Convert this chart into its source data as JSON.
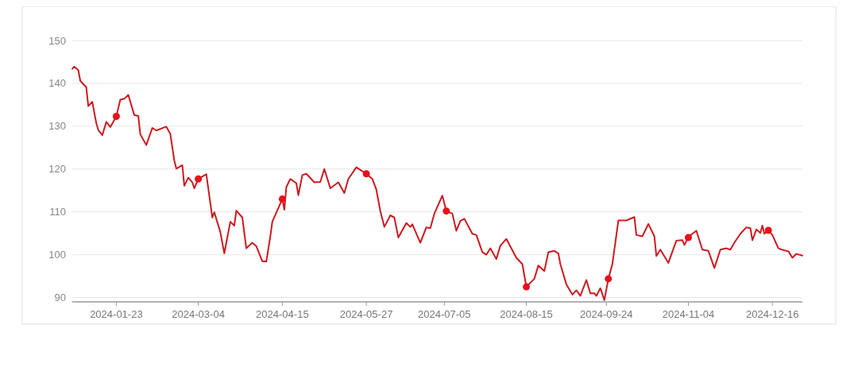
{
  "chart_data": {
    "type": "line",
    "xlim": [
      "2024-01-01",
      "2024-12-31"
    ],
    "ylim": [
      89,
      150
    ],
    "yticks": [
      90,
      100,
      110,
      120,
      130,
      140,
      150
    ],
    "xticks": [
      "2024-01-23",
      "2024-03-04",
      "2024-04-15",
      "2024-05-27",
      "2024-07-05",
      "2024-08-15",
      "2024-09-24",
      "2024-11-04",
      "2024-12-16"
    ],
    "grid": "y",
    "series": [
      {
        "color": "#cc1a1f",
        "marker": "none",
        "x": [
          "2024-01-01",
          "2024-01-02",
          "2024-01-04",
          "2024-01-05",
          "2024-01-08",
          "2024-01-09",
          "2024-01-11",
          "2024-01-13",
          "2024-01-14",
          "2024-01-16",
          "2024-01-18",
          "2024-01-20",
          "2024-01-23",
          "2024-01-25",
          "2024-01-27",
          "2024-01-29",
          "2024-02-01",
          "2024-02-03",
          "2024-02-04",
          "2024-02-07",
          "2024-02-10",
          "2024-02-12",
          "2024-02-17",
          "2024-02-19",
          "2024-02-21",
          "2024-02-22",
          "2024-02-25",
          "2024-02-26",
          "2024-02-28",
          "2024-03-01",
          "2024-03-02",
          "2024-03-04",
          "2024-03-08",
          "2024-03-11",
          "2024-03-12",
          "2024-03-15",
          "2024-03-17",
          "2024-03-20",
          "2024-03-22",
          "2024-03-23",
          "2024-03-26",
          "2024-03-28",
          "2024-03-31",
          "2024-04-02",
          "2024-04-05",
          "2024-04-07",
          "2024-04-09",
          "2024-04-10",
          "2024-04-15",
          "2024-04-16",
          "2024-04-17",
          "2024-04-19",
          "2024-04-22",
          "2024-04-23",
          "2024-04-25",
          "2024-04-27",
          "2024-05-01",
          "2024-05-04",
          "2024-05-06",
          "2024-05-09",
          "2024-05-13",
          "2024-05-16",
          "2024-05-18",
          "2024-05-22",
          "2024-05-24",
          "2024-05-27",
          "2024-05-30",
          "2024-06-01",
          "2024-06-03",
          "2024-06-05",
          "2024-06-08",
          "2024-06-10",
          "2024-06-12",
          "2024-06-16",
          "2024-06-18",
          "2024-06-19",
          "2024-06-23",
          "2024-06-26",
          "2024-06-28",
          "2024-06-30",
          "2024-07-04",
          "2024-07-06",
          "2024-07-09",
          "2024-07-11",
          "2024-07-13",
          "2024-07-15",
          "2024-07-19",
          "2024-07-21",
          "2024-07-24",
          "2024-07-26",
          "2024-07-28",
          "2024-07-31",
          "2024-08-02",
          "2024-08-05",
          "2024-08-10",
          "2024-08-13",
          "2024-08-15",
          "2024-08-19",
          "2024-08-21",
          "2024-08-24",
          "2024-08-26",
          "2024-08-29",
          "2024-08-31",
          "2024-09-01",
          "2024-09-04",
          "2024-09-07",
          "2024-09-09",
          "2024-09-11",
          "2024-09-14",
          "2024-09-16",
          "2024-09-18",
          "2024-09-19",
          "2024-09-21",
          "2024-09-23",
          "2024-09-25",
          "2024-09-27",
          "2024-09-30",
          "2024-10-04",
          "2024-10-08",
          "2024-10-09",
          "2024-10-12",
          "2024-10-15",
          "2024-10-18",
          "2024-10-19",
          "2024-10-21",
          "2024-10-25",
          "2024-10-29",
          "2024-11-01",
          "2024-11-02",
          "2024-11-04",
          "2024-11-06",
          "2024-11-08",
          "2024-11-11",
          "2024-11-14",
          "2024-11-17",
          "2024-11-20",
          "2024-11-23",
          "2024-11-25",
          "2024-11-27",
          "2024-11-30",
          "2024-12-03",
          "2024-12-05",
          "2024-12-06",
          "2024-12-08",
          "2024-12-10",
          "2024-12-11",
          "2024-12-12",
          "2024-12-14",
          "2024-12-16",
          "2024-12-19",
          "2024-12-22",
          "2024-12-24",
          "2024-12-26",
          "2024-12-28",
          "2024-12-31"
        ],
        "values": [
          143.4,
          143.9,
          143.1,
          140.6,
          139.1,
          134.7,
          135.7,
          130.7,
          129.1,
          127.9,
          131,
          129.8,
          132.3,
          136.2,
          136.4,
          137.3,
          132.6,
          132.4,
          128.1,
          125.6,
          129.6,
          129,
          129.9,
          128.2,
          122,
          120.1,
          120.9,
          116.1,
          118,
          116.9,
          115.5,
          117.7,
          118.8,
          108.7,
          109.9,
          105.3,
          100.3,
          107.7,
          106.8,
          110.3,
          108.7,
          101.5,
          102.8,
          102,
          98.5,
          98.4,
          104.3,
          107.7,
          113,
          110.5,
          115.8,
          117.7,
          116.7,
          113.9,
          118.6,
          118.9,
          116.9,
          117,
          120,
          115.5,
          116.9,
          114.4,
          117.7,
          120.4,
          119.8,
          118.9,
          117.7,
          115.2,
          110.2,
          106.5,
          109.2,
          108.7,
          104,
          107.4,
          106.5,
          107.1,
          102.8,
          106.4,
          106.2,
          109.6,
          113.8,
          110.2,
          109.6,
          105.6,
          107.9,
          108.4,
          104.9,
          104.6,
          100.6,
          100,
          101.5,
          99,
          102.1,
          103.7,
          99.3,
          97.8,
          92.5,
          94.4,
          97.5,
          96.2,
          100.6,
          100.9,
          100.3,
          97.8,
          93.1,
          90.7,
          91.7,
          90.4,
          94.1,
          91,
          91,
          90.4,
          92.2,
          89.4,
          94.4,
          97.8,
          108,
          108,
          108.8,
          104.6,
          104.3,
          107.2,
          104.3,
          99.7,
          101.2,
          98.1,
          103.3,
          103.4,
          102.3,
          104,
          104.9,
          105.6,
          101.2,
          100.9,
          96.9,
          101.2,
          101.5,
          101.2,
          102.8,
          104.9,
          106.4,
          106.2,
          103.4,
          105.9,
          105.1,
          106.8,
          104.9,
          105.7,
          104.6,
          101.5,
          101,
          100.8,
          99.3,
          100.2,
          99.8
        ]
      },
      {
        "type": "scatter",
        "color": "#e8101a",
        "marker": "circle",
        "x": [
          "2024-01-23",
          "2024-03-04",
          "2024-04-15",
          "2024-05-27",
          "2024-07-06",
          "2024-08-15",
          "2024-09-25",
          "2024-11-04",
          "2024-12-14"
        ],
        "values": [
          132.3,
          117.7,
          113,
          118.9,
          110.2,
          92.5,
          94.4,
          104,
          105.7
        ]
      }
    ]
  }
}
